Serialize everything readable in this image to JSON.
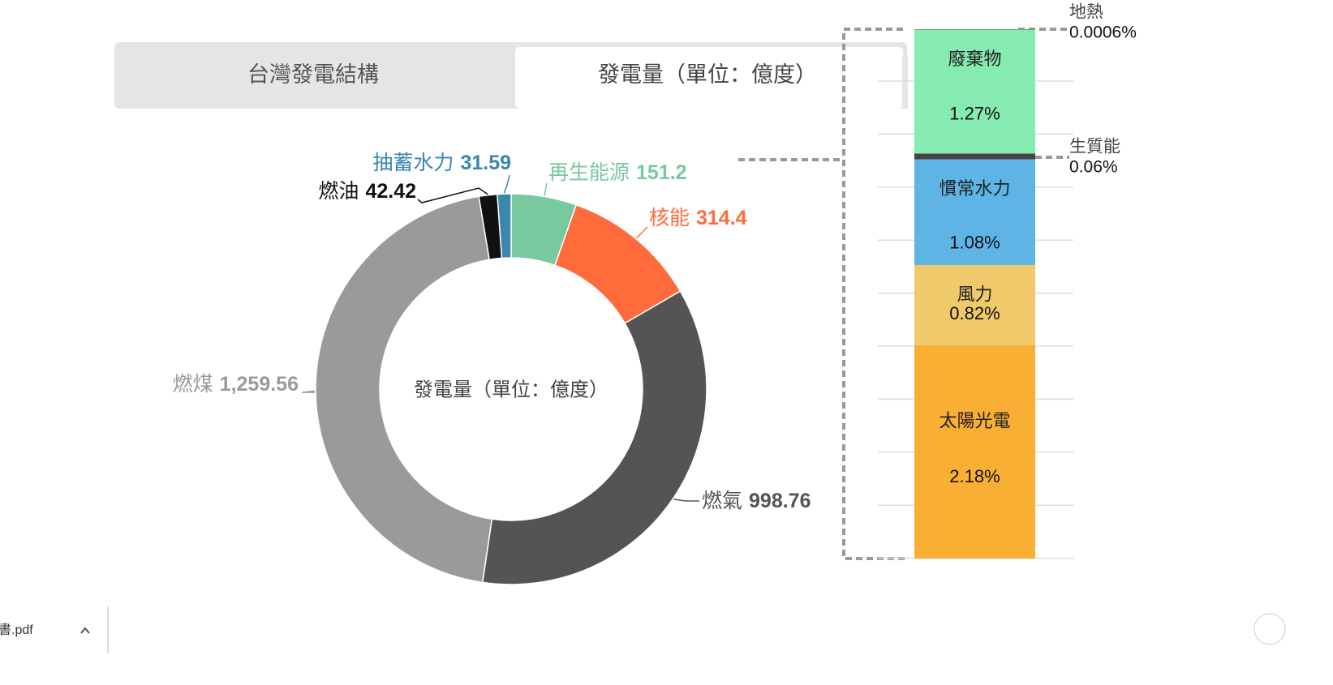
{
  "tabs": [
    "台灣發電結構",
    "發電量（單位：億度）"
  ],
  "chart_data": [
    {
      "type": "pie",
      "center_label": "發電量（單位：億度）",
      "categories": [
        "再生能源",
        "核能",
        "燃氣",
        "燃煤",
        "燃油",
        "抽蓄水力"
      ],
      "values": [
        151.2,
        314.4,
        998.76,
        1259.56,
        42.42,
        31.59
      ],
      "value_labels": [
        "151.2",
        "314.4",
        "998.76",
        "1,259.56",
        "42.42",
        "31.59"
      ],
      "colors": [
        "#78c99e",
        "#ff6b3a",
        "#555354",
        "#9a9a9a",
        "#111111",
        "#3a87ad"
      ],
      "label_colors": [
        "#78c99e",
        "#ff6b3a",
        "#555354",
        "#9a9a9a",
        "#111111",
        "#3a87ad"
      ]
    },
    {
      "type": "stacked_bar",
      "categories": [
        "太陽光電",
        "風力",
        "慣常水力",
        "生質能",
        "廢棄物",
        "地熱"
      ],
      "values": [
        2.18,
        0.82,
        1.08,
        0.06,
        1.27,
        0.0006
      ],
      "value_labels": [
        "2.18%",
        "0.82%",
        "1.08%",
        "0.06%",
        "1.27%",
        "0.0006%"
      ],
      "colors": [
        "#f9ae34",
        "#efc96a",
        "#5db4e5",
        "#444444",
        "#86ebb0",
        "#555555"
      ]
    }
  ],
  "download_bar": {
    "file": "書.pdf"
  }
}
